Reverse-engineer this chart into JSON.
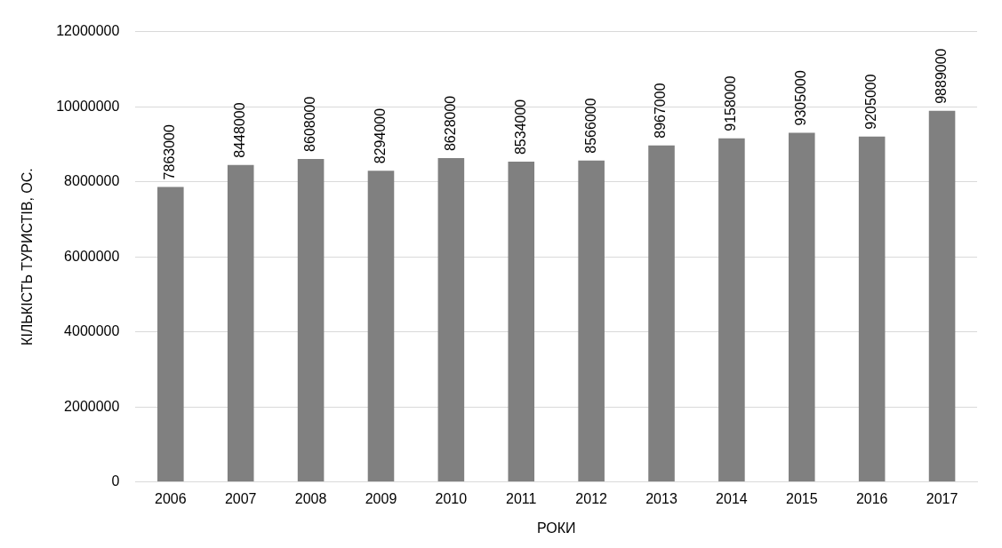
{
  "chart_data": {
    "type": "bar",
    "xlabel": "РОКИ",
    "ylabel": "КІЛЬКІСТЬ ТУРИСТІВ, ОС.",
    "categories": [
      "2006",
      "2007",
      "2008",
      "2009",
      "2010",
      "2011",
      "2012",
      "2013",
      "2014",
      "2015",
      "2016",
      "2017"
    ],
    "values": [
      7863000,
      8448000,
      8608000,
      8294000,
      8628000,
      8534000,
      8566000,
      8967000,
      9158000,
      9305000,
      9205000,
      9889000
    ],
    "color": "#808080",
    "ylim": [
      0,
      12000000
    ],
    "yticks": [
      0,
      2000000,
      4000000,
      6000000,
      8000000,
      10000000,
      12000000
    ],
    "grid": "y",
    "data_labels": true,
    "legend": false
  }
}
